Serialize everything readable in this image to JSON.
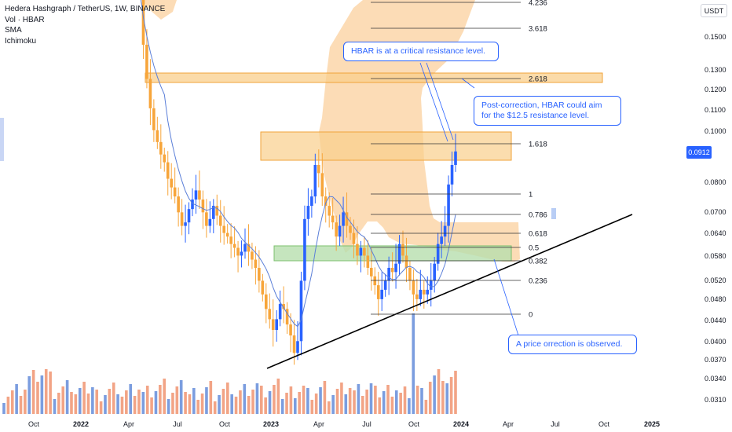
{
  "legend": {
    "title": "Hedera Hashgraph / TetherUS, 1W, BINANCE",
    "vol": "Vol · HBAR",
    "sma": "SMA",
    "ichimoku": "Ichimoku"
  },
  "currency_button": "USDT",
  "last_price": "0.0912",
  "annotations": {
    "critical": "HBAR is at a critical resistance level.",
    "post_correction_line1": "Post-correction, HBAR could aim",
    "post_correction_line2": "for the $12.5 resistance level.",
    "correction": "A price orrection is observed."
  },
  "colors": {
    "up_candle": "#2962ff",
    "down_candle": "#f7a53a",
    "vol_up": "#7b9ddf",
    "vol_down": "#f2a486",
    "cloud": "#fbc98f",
    "resistance_zone": "#f9cf8c",
    "support_zone": "#b7dfae",
    "callout_border": "#2962ff",
    "sma": "#5b7fd8",
    "trendline": "#000000"
  },
  "chart_data": {
    "type": "candlestick",
    "interval": "1W",
    "y_axis": {
      "scale": "log",
      "ticks": [
        "0.1500",
        "0.1300",
        "0.1200",
        "0.1100",
        "0.1000",
        "0.0800",
        "0.0700",
        "0.0640",
        "0.0580",
        "0.0520",
        "0.0480",
        "0.0440",
        "0.0400",
        "0.0370",
        "0.0340",
        "0.0310"
      ]
    },
    "x_axis": {
      "ticks": [
        "Oct",
        "2022",
        "Apr",
        "Jul",
        "Oct",
        "2023",
        "Apr",
        "Jul",
        "Oct",
        "2024",
        "Apr",
        "Jul",
        "Oct",
        "2025"
      ]
    },
    "fibonacci_levels": [
      {
        "label": "4.236"
      },
      {
        "label": "3.618",
        "price": 0.142
      },
      {
        "label": "2.618",
        "price": 0.125
      },
      {
        "label": "1.618",
        "price": 0.095
      },
      {
        "label": "1",
        "price": 0.0765
      },
      {
        "label": "0.786",
        "price": 0.0695
      },
      {
        "label": "0.618",
        "price": 0.0645
      },
      {
        "label": "0.5",
        "price": 0.061
      },
      {
        "label": "0.382",
        "price": 0.0575
      },
      {
        "label": "0.236",
        "price": 0.0525
      },
      {
        "label": "0",
        "price": 0.0455
      }
    ]
  }
}
